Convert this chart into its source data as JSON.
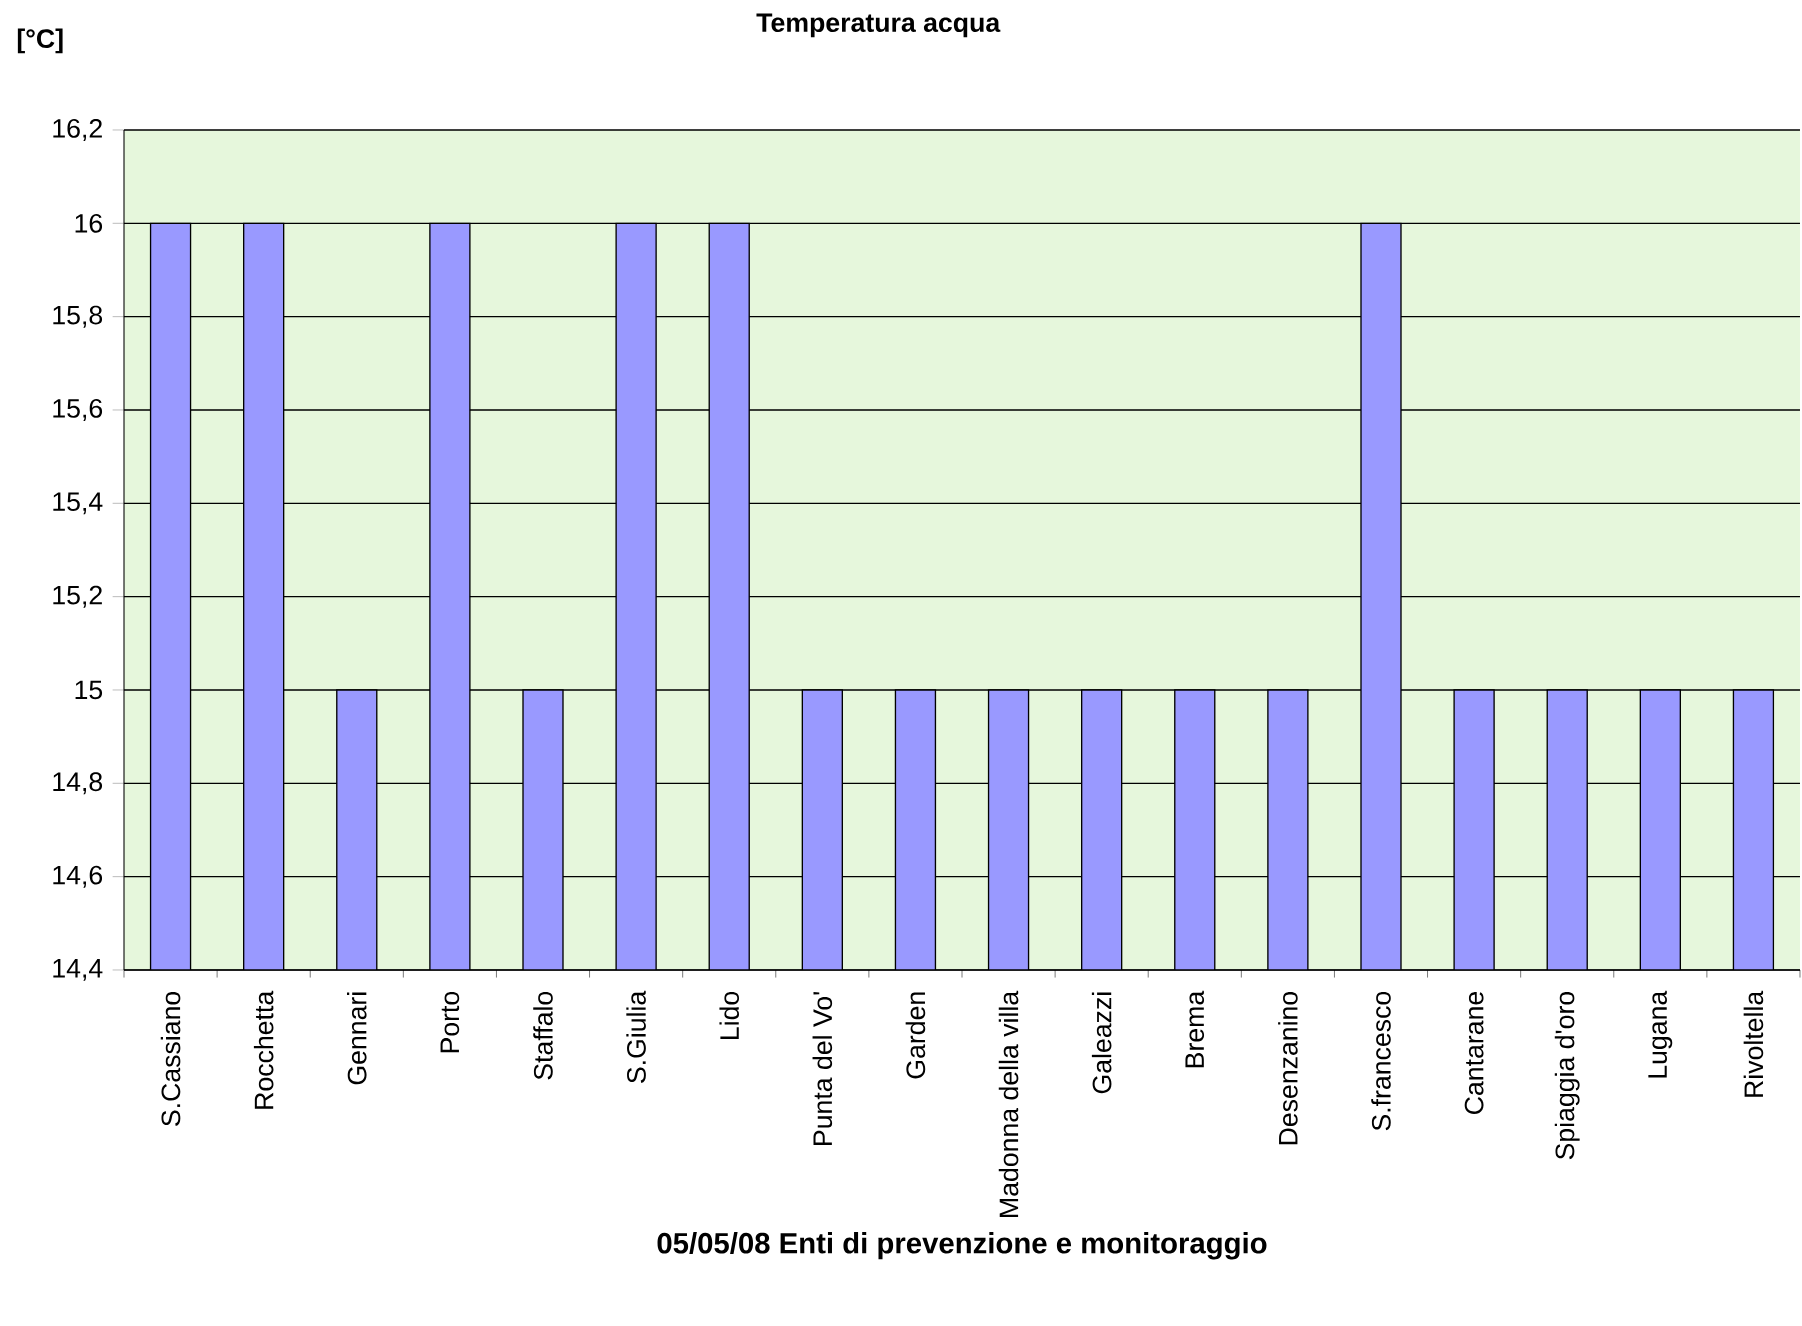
{
  "chart_data": {
    "type": "bar",
    "title": "Temperatura acqua",
    "ylabel": "[°C]",
    "xlabel": "05/05/08 Enti di prevenzione e monitoraggio",
    "categories": [
      "S.Cassiano",
      "Rocchetta",
      "Gennari",
      "Porto",
      "Staffalo",
      "S.Giulia",
      "Lido",
      "Punta del Vo'",
      "Garden",
      "Madonna della villa",
      "Galeazzi",
      "Brema",
      "Desenzanino",
      "S.francesco",
      "Cantarane",
      "Spiaggia d'oro",
      "Lugana",
      "Rivoltella"
    ],
    "values": [
      16,
      16,
      15,
      16,
      15,
      16,
      16,
      15,
      15,
      15,
      15,
      15,
      15,
      16,
      15,
      15,
      15,
      15
    ],
    "color": "#9999ff",
    "ylim": [
      14.4,
      16.2
    ],
    "yticks": [
      {
        "value": 14.4,
        "label": "14,4"
      },
      {
        "value": 14.6,
        "label": "14,6"
      },
      {
        "value": 14.8,
        "label": "14,8"
      },
      {
        "value": 15,
        "label": "15"
      },
      {
        "value": 15.2,
        "label": "15,2"
      },
      {
        "value": 15.4,
        "label": "15,4"
      },
      {
        "value": 15.6,
        "label": "15,6"
      },
      {
        "value": 15.8,
        "label": "15,8"
      },
      {
        "value": 16,
        "label": "16"
      },
      {
        "value": 16.2,
        "label": "16,2"
      }
    ],
    "grid": "y"
  }
}
